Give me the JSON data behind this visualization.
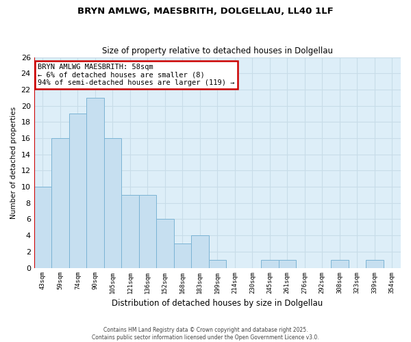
{
  "title1": "BRYN AMLWG, MAESBRITH, DOLGELLAU, LL40 1LF",
  "title2": "Size of property relative to detached houses in Dolgellau",
  "xlabel": "Distribution of detached houses by size in Dolgellau",
  "ylabel": "Number of detached properties",
  "bar_labels": [
    "43sqm",
    "59sqm",
    "74sqm",
    "90sqm",
    "105sqm",
    "121sqm",
    "136sqm",
    "152sqm",
    "168sqm",
    "183sqm",
    "199sqm",
    "214sqm",
    "230sqm",
    "245sqm",
    "261sqm",
    "276sqm",
    "292sqm",
    "308sqm",
    "323sqm",
    "339sqm",
    "354sqm"
  ],
  "bar_values": [
    10,
    16,
    19,
    21,
    16,
    9,
    9,
    6,
    3,
    4,
    1,
    0,
    0,
    1,
    1,
    0,
    0,
    1,
    0,
    1,
    0
  ],
  "bar_color": "#c6dff0",
  "bar_edge_color": "#7ab3d4",
  "grid_color": "#c8dce8",
  "bg_color": "#ddeef8",
  "annotation_title": "BRYN AMLWG MAESBRITH: 58sqm",
  "annotation_line1": "← 6% of detached houses are smaller (8)",
  "annotation_line2": "94% of semi-detached houses are larger (119) →",
  "vline_x": -0.5,
  "vline_color": "#cc0000",
  "ylim": [
    0,
    26
  ],
  "yticks": [
    0,
    2,
    4,
    6,
    8,
    10,
    12,
    14,
    16,
    18,
    20,
    22,
    24,
    26
  ],
  "footer1": "Contains HM Land Registry data © Crown copyright and database right 2025.",
  "footer2": "Contains public sector information licensed under the Open Government Licence v3.0."
}
